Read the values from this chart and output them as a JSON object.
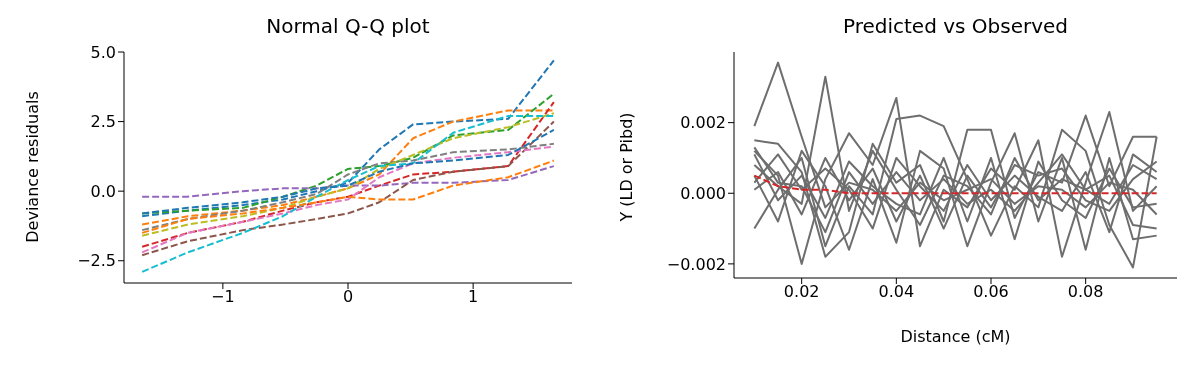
{
  "chart_data": [
    {
      "type": "line",
      "title": "Normal Q-Q plot",
      "ylabel": "Deviance residuals",
      "line_style": "dashed",
      "x": [
        -1.645,
        -1.28,
        -0.84,
        -0.52,
        -0.25,
        0,
        0.25,
        0.52,
        0.84,
        1.28,
        1.645
      ],
      "xlim": [
        -1.79,
        1.79
      ],
      "xticks": [
        {
          "value": -1,
          "label": "−1"
        },
        0,
        1
      ],
      "ylim": [
        -3.3,
        5.0
      ],
      "yticks": [
        {
          "value": -2.5,
          "label": "−2.5"
        },
        {
          "value": 0,
          "label": "0.0"
        },
        2.5,
        {
          "value": 5,
          "label": "5.0"
        }
      ],
      "series": [
        {
          "color": "#1f77b4",
          "values": [
            -0.9,
            -0.7,
            -0.5,
            -0.3,
            0,
            0.3,
            1.5,
            2.4,
            2.5,
            2.6,
            4.7
          ]
        },
        {
          "color": "#ff7f0e",
          "values": [
            -1.2,
            -0.9,
            -0.7,
            -0.5,
            -0.2,
            0.1,
            0.6,
            1.9,
            2.5,
            2.9,
            2.9
          ]
        },
        {
          "color": "#2ca02c",
          "values": [
            -0.8,
            -0.7,
            -0.6,
            -0.2,
            0.2,
            0.8,
            0.9,
            1.2,
            2.0,
            2.2,
            3.5
          ]
        },
        {
          "color": "#d62728",
          "values": [
            -2.0,
            -1.5,
            -1.1,
            -0.7,
            -0.4,
            -0.2,
            0.2,
            0.6,
            0.7,
            0.9,
            3.2
          ]
        },
        {
          "color": "#9467bd",
          "values": [
            -0.2,
            -0.2,
            0,
            0.1,
            0.1,
            0.2,
            0.2,
            0.3,
            0.3,
            0.4,
            0.9
          ]
        },
        {
          "color": "#8c564b",
          "values": [
            -2.3,
            -1.8,
            -1.4,
            -1.2,
            -1.0,
            -0.8,
            -0.4,
            0.4,
            0.7,
            0.9,
            2.5
          ]
        },
        {
          "color": "#e377c2",
          "values": [
            -2.2,
            -1.5,
            -1.1,
            -0.8,
            -0.5,
            -0.3,
            0.5,
            1.0,
            1.2,
            1.4,
            1.6
          ]
        },
        {
          "color": "#7f7f7f",
          "values": [
            -1.4,
            -1.0,
            -0.7,
            -0.4,
            -0.1,
            0.6,
            1.0,
            1.1,
            1.4,
            1.5,
            1.7
          ]
        },
        {
          "color": "#bcbd22",
          "values": [
            -1.6,
            -1.2,
            -0.9,
            -0.6,
            -0.2,
            0.1,
            0.8,
            1.3,
            1.9,
            2.3,
            2.8
          ]
        },
        {
          "color": "#17becf",
          "values": [
            -2.9,
            -2.2,
            -1.5,
            -0.9,
            -0.2,
            0.4,
            0.9,
            1.0,
            2.1,
            2.7,
            2.7
          ]
        },
        {
          "color": "#ff7f0e",
          "values": [
            -1.5,
            -1.0,
            -0.8,
            -0.6,
            -0.4,
            -0.2,
            -0.3,
            -0.3,
            0.2,
            0.5,
            1.1
          ]
        },
        {
          "color": "#1f77b4",
          "values": [
            -0.8,
            -0.6,
            -0.4,
            -0.2,
            0.1,
            0.2,
            0.7,
            1.0,
            1.1,
            1.3,
            2.2
          ]
        }
      ]
    },
    {
      "type": "line",
      "title": "Predicted vs Observed",
      "xlabel": "Distance (cM)",
      "ylabel": "Y (LD or Pibd)",
      "line_style": "solid",
      "x": [
        0.01,
        0.015,
        0.02,
        0.025,
        0.03,
        0.035,
        0.04,
        0.045,
        0.05,
        0.055,
        0.06,
        0.065,
        0.07,
        0.075,
        0.08,
        0.085,
        0.09,
        0.095
      ],
      "xlim": [
        0.0057,
        0.0993
      ],
      "xticks": [
        0.02,
        0.04,
        0.06,
        0.08
      ],
      "ylim": [
        -0.0024,
        0.004
      ],
      "yticks": [
        {
          "value": -0.002,
          "label": "−0.002"
        },
        {
          "value": 0,
          "label": "0.000"
        },
        0.002
      ],
      "series": [
        {
          "color": "#6e6e6e",
          "values": [
            0.0019,
            0.0037,
            0.0016,
            -0.0004,
            0.0003,
            0.0001,
            -0.0005,
            0.0003,
            -0.0002,
            0.0001,
            0.0004,
            -0.0003,
            0.0002,
            0.0001,
            -0.0004,
            0.0003,
            0.0001,
            -0.0006
          ]
        },
        {
          "color": "#6e6e6e",
          "values": [
            0.0008,
            0.0002,
            -0.0003,
            0.0033,
            -0.0005,
            0.0012,
            0.0001,
            -0.0009,
            0.0005,
            0.0002,
            -0.0006,
            0.001,
            -0.0002,
            0.0004,
            0.0001,
            -0.0003,
            0.0008,
            0.0004
          ]
        },
        {
          "color": "#6e6e6e",
          "values": [
            0.0012,
            0.0005,
            -0.002,
            0.0004,
            0.0017,
            0.0008,
            0.0027,
            -0.0015,
            0.0001,
            -0.0004,
            0.0007,
            0.0001,
            0.0015,
            -0.0018,
            0.0003,
            0.0023,
            -0.0005,
            0.0002
          ]
        },
        {
          "color": "#6e6e6e",
          "values": [
            -0.001,
            0.0001,
            0.001,
            -0.0015,
            0.0002,
            -0.0006,
            0.0021,
            0.0022,
            0.0019,
            0.0004,
            -0.0012,
            0.0002,
            -0.0004,
            0.0018,
            0.0012,
            -0.0009,
            -0.0021,
            0.0016
          ]
        },
        {
          "color": "#6e6e6e",
          "values": [
            0.0015,
            0.0014,
            0.0006,
            -0.0018,
            -0.0011,
            0.0014,
            0.0003,
            0.0008,
            -0.0008,
            0.0018,
            0.0018,
            -0.0007,
            0.0006,
            0.0003,
            0.0022,
            0.0002,
            0.0016,
            0.0016
          ]
        },
        {
          "color": "#6e6e6e",
          "values": [
            0.0005,
            -0.0008,
            0.0012,
            0.0002,
            -0.0016,
            0.0004,
            -0.0014,
            0.0012,
            0.0007,
            -0.0015,
            0.0003,
            0.0017,
            -0.0008,
            0.001,
            -0.0016,
            0.001,
            -0.0013,
            -0.0012
          ]
        },
        {
          "color": "#6e6e6e",
          "values": [
            0.0003,
            0.0011,
            0.0001,
            0.0007,
            0.0001,
            -0.001,
            0.001,
            0.0002,
            -0.0005,
            0.0008,
            -0.0002,
            0.0005,
            -0.0001,
            -0.0005,
            0.0006,
            -0.0011,
            0.0011,
            0.0006
          ]
        },
        {
          "color": "#6e6e6e",
          "values": [
            0.0011,
            -0.0002,
            0.0005,
            -0.0007,
            0.0009,
            0.0002,
            -0.0003,
            -0.0006,
            0.001,
            -0.0008,
            0.001,
            -0.0013,
            0.0009,
            -0.0002,
            -0.0007,
            0.0007,
            -0.0004,
            -0.0003
          ]
        },
        {
          "color": "#6e6e6e",
          "values": [
            0.0001,
            0.0006,
            -0.0006,
            0.001,
            -0.0002,
            0.0007,
            -0.0008,
            0.0005,
            -0.001,
            0.0005,
            -0.0004,
            0.0008,
            0.0005,
            0.0007,
            -0.0002,
            -0.0005,
            0.0004,
            0.0009
          ]
        },
        {
          "color": "#6e6e6e",
          "values": [
            0.0013,
            0.0003,
            0.0002,
            -0.0011,
            0.0006,
            -0.0003,
            0.0006,
            -0.0002,
            0.0004,
            -0.0003,
            0.0001,
            -0.0005,
            0.0003,
            0.0011,
            0.0001,
            0.0005,
            -0.0009,
            -0.001
          ]
        },
        {
          "color": "#d62728",
          "line_style": "dashed",
          "values": [
            0.0005,
            0.0002,
            0.0001,
            0.0001,
            0,
            0,
            0,
            0,
            0,
            0,
            0,
            0,
            0,
            0,
            0,
            0,
            0,
            0
          ]
        }
      ]
    }
  ]
}
